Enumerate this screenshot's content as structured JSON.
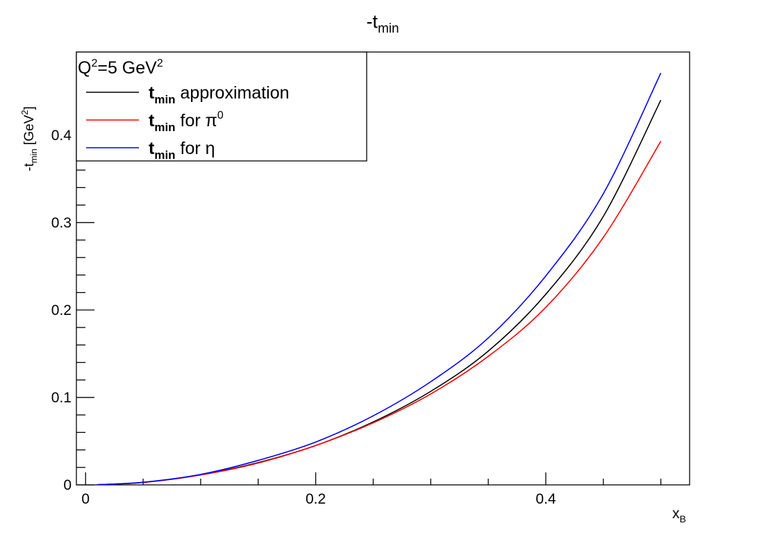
{
  "chart_data": {
    "type": "line",
    "title": {
      "base": "-t",
      "sub": "min"
    },
    "xlabel": {
      "base": "x",
      "sub": "B"
    },
    "ylabel": {
      "base": "-t",
      "sub": "min",
      "rest": " [GeV",
      "sup": "2",
      "end": "]"
    },
    "xlim": [
      -0.008,
      0.525
    ],
    "ylim": [
      0,
      0.495
    ],
    "x_ticks": [
      {
        "v": 0,
        "label": "0"
      },
      {
        "v": 0.2,
        "label": "0.2"
      },
      {
        "v": 0.4,
        "label": "0.4"
      }
    ],
    "y_ticks": [
      {
        "v": 0,
        "label": "0"
      },
      {
        "v": 0.1,
        "label": "0.1"
      },
      {
        "v": 0.2,
        "label": "0.2"
      },
      {
        "v": 0.3,
        "label": "0.3"
      },
      {
        "v": 0.4,
        "label": "0.4"
      }
    ],
    "grid": false,
    "legend": {
      "position": "top-left",
      "header": {
        "q": "Q",
        "q_sup": "2",
        "mid": "=5 GeV",
        "unit_sup": "2"
      },
      "entries": [
        {
          "bold": "t",
          "sub": "min",
          "text": " approximation",
          "sup": ""
        },
        {
          "bold": "t",
          "sub": "min",
          "text": " for π",
          "sup": "0"
        },
        {
          "bold": "t",
          "sub": "min",
          "text": " for η",
          "sup": ""
        }
      ]
    },
    "series": [
      {
        "color": "#000000",
        "x": [
          0.01,
          0.05,
          0.1,
          0.15,
          0.2,
          0.25,
          0.3,
          0.35,
          0.4,
          0.45,
          0.5
        ],
        "y": [
          0.0002,
          0.0028,
          0.0115,
          0.0255,
          0.045,
          0.072,
          0.107,
          0.153,
          0.218,
          0.307,
          0.44
        ]
      },
      {
        "color": "#ff0000",
        "x": [
          0.01,
          0.05,
          0.1,
          0.15,
          0.2,
          0.25,
          0.3,
          0.35,
          0.4,
          0.45,
          0.5
        ],
        "y": [
          0.0002,
          0.0028,
          0.0113,
          0.025,
          0.045,
          0.071,
          0.104,
          0.147,
          0.203,
          0.283,
          0.393
        ]
      },
      {
        "color": "#0000ff",
        "x": [
          0.01,
          0.05,
          0.1,
          0.15,
          0.2,
          0.25,
          0.3,
          0.35,
          0.4,
          0.45,
          0.5
        ],
        "y": [
          0.0002,
          0.003,
          0.012,
          0.028,
          0.049,
          0.079,
          0.118,
          0.168,
          0.239,
          0.333,
          0.471
        ]
      }
    ]
  }
}
